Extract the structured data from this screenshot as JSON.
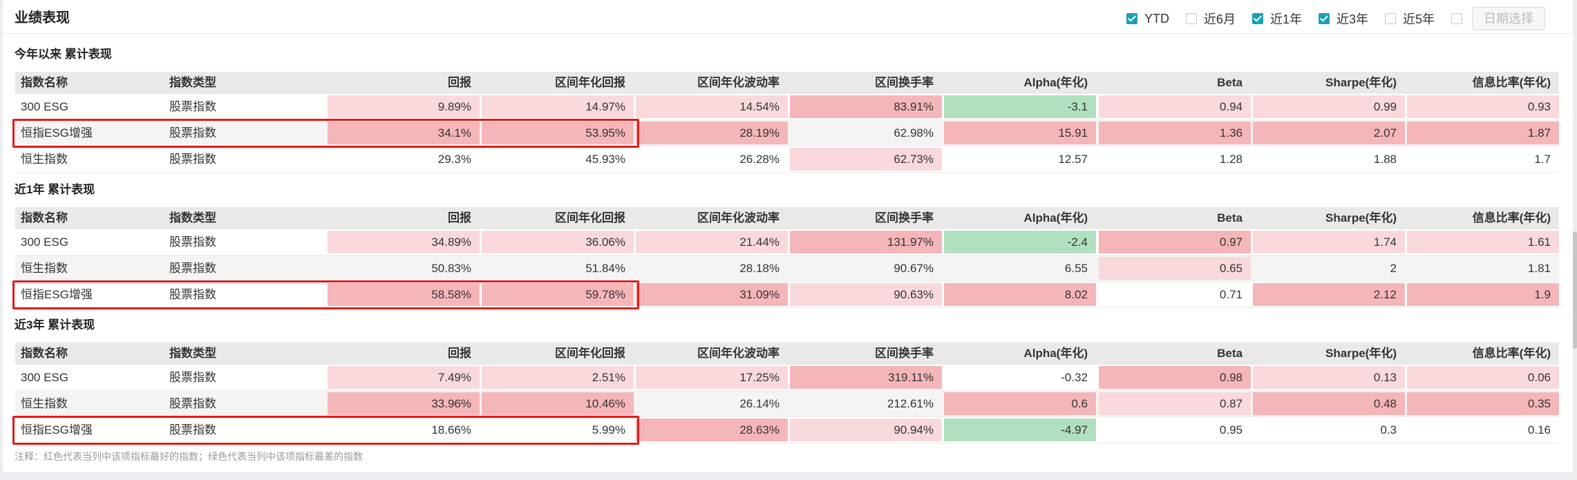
{
  "header": {
    "title": "业绩表现",
    "filters": [
      {
        "label": "YTD",
        "checked": true
      },
      {
        "label": "近6月",
        "checked": false
      },
      {
        "label": "近1年",
        "checked": true
      },
      {
        "label": "近3年",
        "checked": true
      },
      {
        "label": "近5年",
        "checked": false
      }
    ],
    "date_button": "日期选择"
  },
  "columns": [
    "指数名称",
    "指数类型",
    "回报",
    "区间年化回报",
    "区间年化波动率",
    "区间换手率",
    "Alpha(年化)",
    "Beta",
    "Sharpe(年化)",
    "信息比率(年化)"
  ],
  "sections": [
    {
      "title": "今年以来 累计表现",
      "rows": [
        {
          "name": "300 ESG",
          "type": "股票指数",
          "values": [
            "9.89%",
            "14.97%",
            "14.54%",
            "83.91%",
            "-3.1",
            "0.94",
            "0.99",
            "0.93"
          ],
          "colors": [
            "r1",
            "r1",
            "r1",
            "r2",
            "g",
            "r1",
            "r1",
            "r1"
          ]
        },
        {
          "name": "恒指ESG增强",
          "type": "股票指数",
          "values": [
            "34.1%",
            "53.95%",
            "28.19%",
            "62.98%",
            "15.91",
            "1.36",
            "2.07",
            "1.87"
          ],
          "colors": [
            "r2",
            "r2",
            "r2",
            "",
            "r2",
            "r2",
            "r2",
            "r2"
          ]
        },
        {
          "name": "恒生指数",
          "type": "股票指数",
          "values": [
            "29.3%",
            "45.93%",
            "26.28%",
            "62.73%",
            "12.57",
            "1.28",
            "1.88",
            "1.7"
          ],
          "colors": [
            "",
            "",
            "",
            "r1",
            "",
            "",
            "",
            ""
          ]
        }
      ]
    },
    {
      "title": "近1年 累计表现",
      "rows": [
        {
          "name": "300 ESG",
          "type": "股票指数",
          "values": [
            "34.89%",
            "36.06%",
            "21.44%",
            "131.97%",
            "-2.4",
            "0.97",
            "1.74",
            "1.61"
          ],
          "colors": [
            "r1",
            "r1",
            "r1",
            "r2",
            "g",
            "r2",
            "r1",
            "r1"
          ]
        },
        {
          "name": "恒生指数",
          "type": "股票指数",
          "values": [
            "50.83%",
            "51.84%",
            "28.18%",
            "90.67%",
            "6.55",
            "0.65",
            "2",
            "1.81"
          ],
          "colors": [
            "",
            "",
            "",
            "",
            "",
            "r1",
            "",
            ""
          ]
        },
        {
          "name": "恒指ESG增强",
          "type": "股票指数",
          "values": [
            "58.58%",
            "59.78%",
            "31.09%",
            "90.63%",
            "8.02",
            "0.71",
            "2.12",
            "1.9"
          ],
          "colors": [
            "r2",
            "r2",
            "r2",
            "r1",
            "r2",
            "",
            "r2",
            "r2"
          ]
        }
      ]
    },
    {
      "title": "近3年 累计表现",
      "rows": [
        {
          "name": "300 ESG",
          "type": "股票指数",
          "values": [
            "7.49%",
            "2.51%",
            "17.25%",
            "319.11%",
            "-0.32",
            "0.98",
            "0.13",
            "0.06"
          ],
          "colors": [
            "r1",
            "r1",
            "r1",
            "r2",
            "",
            "r2",
            "r1",
            "r1"
          ]
        },
        {
          "name": "恒生指数",
          "type": "股票指数",
          "values": [
            "33.96%",
            "10.46%",
            "26.14%",
            "212.61%",
            "0.6",
            "0.87",
            "0.48",
            "0.35"
          ],
          "colors": [
            "r2",
            "r2",
            "",
            "",
            "r2",
            "r1",
            "r2",
            "r2"
          ]
        },
        {
          "name": "恒指ESG增强",
          "type": "股票指数",
          "values": [
            "18.66%",
            "5.99%",
            "28.63%",
            "90.94%",
            "-4.97",
            "0.95",
            "0.3",
            "0.16"
          ],
          "colors": [
            "",
            "",
            "r2",
            "r1",
            "g",
            "",
            "",
            ""
          ]
        }
      ]
    }
  ],
  "note": "注释：红色代表当列中该项指标最好的指数；绿色代表当列中该项指标最差的指数",
  "colors": {
    "best_light": "#f9d9dc",
    "best_strong": "#f5b6b9",
    "worst": "#b1e0c0",
    "check_accent": "#1a9fb4",
    "highlight_border": "#e21b1b"
  }
}
